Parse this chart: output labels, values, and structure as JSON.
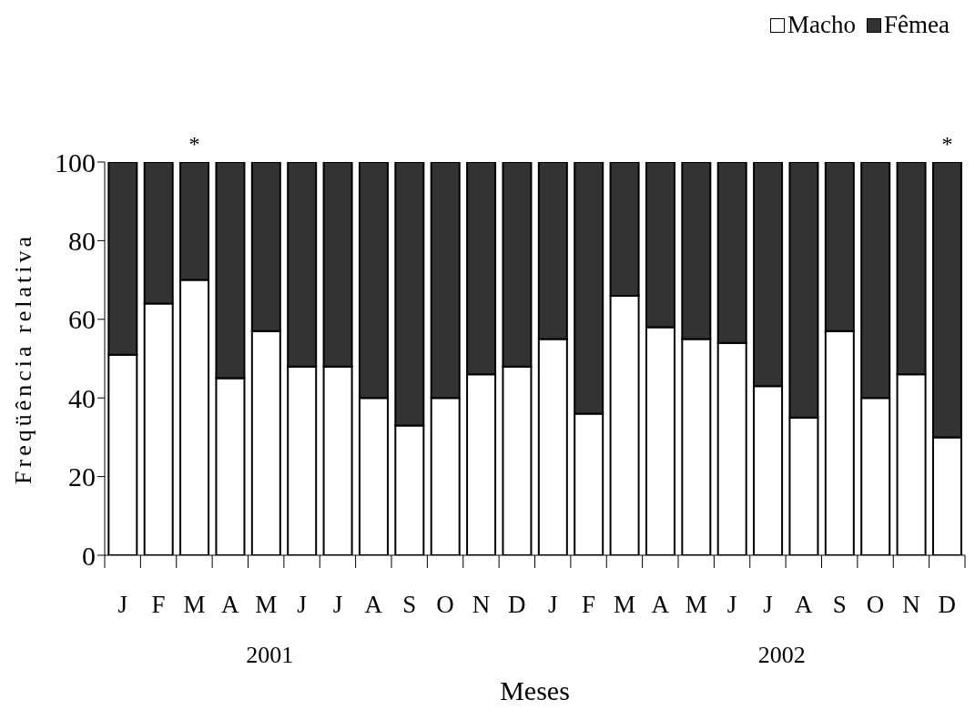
{
  "chart_data": {
    "type": "bar",
    "stacked": true,
    "xlabel": "Meses",
    "ylabel": "Freqüência relativa",
    "categories": [
      "J",
      "F",
      "M",
      "A",
      "M",
      "J",
      "J",
      "A",
      "S",
      "O",
      "N",
      "D",
      "J",
      "F",
      "M",
      "A",
      "M",
      "J",
      "J",
      "A",
      "S",
      "O",
      "N",
      "D"
    ],
    "series": [
      {
        "name": "Macho",
        "color": "#ffffff",
        "values": [
          51,
          64,
          70,
          45,
          57,
          48,
          48,
          40,
          33,
          40,
          46,
          48,
          55,
          36,
          66,
          58,
          55,
          54,
          43,
          35,
          57,
          40,
          46,
          30
        ]
      },
      {
        "name": "Fêmea",
        "color": "#333333",
        "values": [
          49,
          36,
          30,
          55,
          43,
          52,
          52,
          60,
          67,
          60,
          54,
          52,
          45,
          64,
          34,
          42,
          45,
          46,
          57,
          65,
          43,
          60,
          54,
          70
        ],
        "value_labels": [
          null,
          null,
          "*",
          null,
          null,
          null,
          null,
          null,
          null,
          null,
          null,
          null,
          null,
          null,
          null,
          null,
          null,
          null,
          null,
          null,
          null,
          null,
          null,
          "*"
        ]
      }
    ],
    "annotations": [
      "2001",
      "2002"
    ],
    "ylim": [
      0,
      100
    ],
    "yticks": [
      0,
      20,
      40,
      60,
      80,
      100
    ],
    "legend": "top right"
  }
}
